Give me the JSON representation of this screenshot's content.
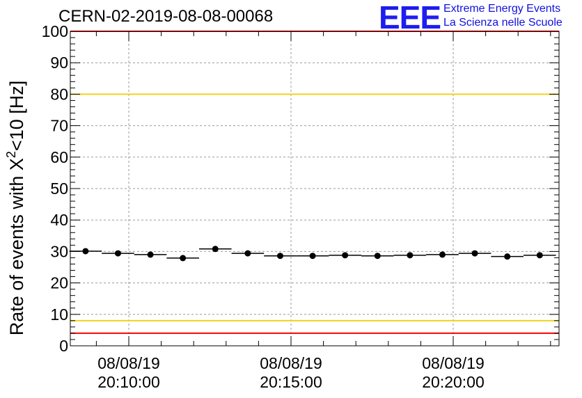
{
  "title": "CERN-02-2019-08-08-00068",
  "logo": {
    "letters": "EEE",
    "line1": "Extreme Energy Events",
    "line2": "La Scienza nelle Scuole"
  },
  "colors": {
    "red_limit": "#ff0000",
    "yellow_limit": "#f2d21a",
    "marker": "#000000",
    "grid": "#999999",
    "logo": "#1d1df0"
  },
  "chart_data": {
    "type": "scatter",
    "ylabel_prefix": "Rate of events with X",
    "ylabel_sup": "2",
    "ylabel_suffix": "<10 [Hz]",
    "ylim": [
      0,
      100
    ],
    "yticks": [
      "0",
      "10",
      "20",
      "30",
      "40",
      "50",
      "60",
      "70",
      "80",
      "90",
      "100"
    ],
    "xticks": [
      {
        "date": "08/08/19",
        "time": "20:10:00"
      },
      {
        "date": "08/08/19",
        "time": "20:15:00"
      },
      {
        "date": "08/08/19",
        "time": "20:20:00"
      }
    ],
    "grid": true,
    "limit_lines": [
      {
        "value": 100,
        "color": "red"
      },
      {
        "value": 80,
        "color": "yellow"
      },
      {
        "value": 8,
        "color": "yellow"
      },
      {
        "value": 4,
        "color": "red"
      }
    ],
    "series": [
      {
        "points": [
          {
            "time": "20:08:40",
            "y": 30.1
          },
          {
            "time": "20:09:40",
            "y": 29.4
          },
          {
            "time": "20:10:40",
            "y": 29.0
          },
          {
            "time": "20:11:40",
            "y": 27.9
          },
          {
            "time": "20:12:40",
            "y": 30.8
          },
          {
            "time": "20:13:40",
            "y": 29.4
          },
          {
            "time": "20:14:40",
            "y": 28.6
          },
          {
            "time": "20:15:40",
            "y": 28.6
          },
          {
            "time": "20:16:40",
            "y": 28.8
          },
          {
            "time": "20:17:40",
            "y": 28.6
          },
          {
            "time": "20:18:40",
            "y": 28.8
          },
          {
            "time": "20:19:40",
            "y": 29.0
          },
          {
            "time": "20:20:40",
            "y": 29.4
          },
          {
            "time": "20:21:40",
            "y": 28.4
          },
          {
            "time": "20:22:40",
            "y": 28.8
          }
        ]
      }
    ]
  }
}
